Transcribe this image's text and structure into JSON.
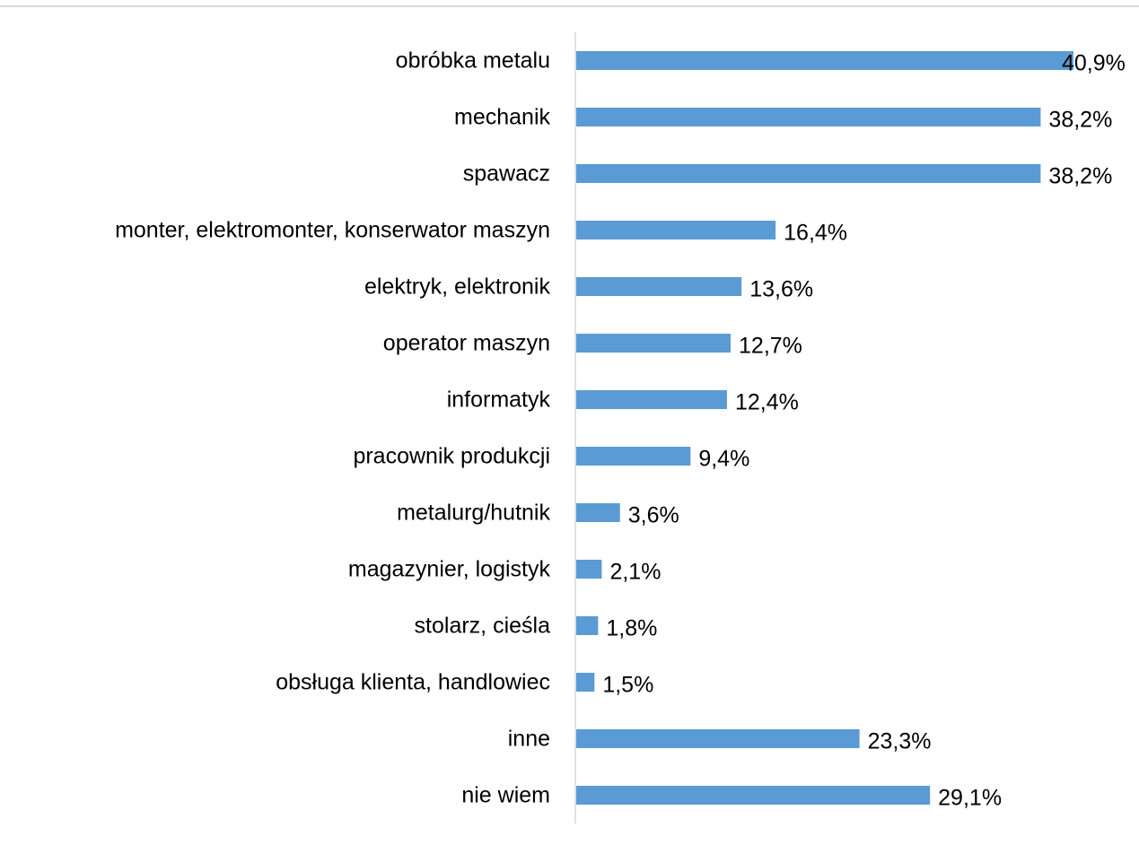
{
  "chart_data": {
    "type": "bar",
    "orientation": "horizontal",
    "categories": [
      "obróbka metalu",
      "mechanik",
      "spawacz",
      "monter, elektromonter, konserwator maszyn",
      "elektryk, elektronik",
      "operator maszyn",
      "informatyk",
      "pracownik produkcji",
      "metalurg/hutnik",
      "magazynier, logistyk",
      "stolarz, cieśla",
      "obsługa klienta, handlowiec",
      "inne",
      "nie wiem"
    ],
    "values": [
      40.9,
      38.2,
      38.2,
      16.4,
      13.6,
      12.7,
      12.4,
      9.4,
      3.6,
      2.1,
      1.8,
      1.5,
      23.3,
      29.1
    ],
    "value_labels": [
      "40,9%",
      "38,2%",
      "38,2%",
      "16,4%",
      "13,6%",
      "12,7%",
      "12,4%",
      "9,4%",
      "3,6%",
      "2,1%",
      "1,8%",
      "1,5%",
      "23,3%",
      "29,1%"
    ],
    "title": "",
    "xlabel": "",
    "ylabel": "",
    "xlim": [
      0,
      45
    ],
    "grid": false,
    "legend": "none",
    "bar_color": "#5b9bd5",
    "axis_color": "#d9d9d9"
  }
}
